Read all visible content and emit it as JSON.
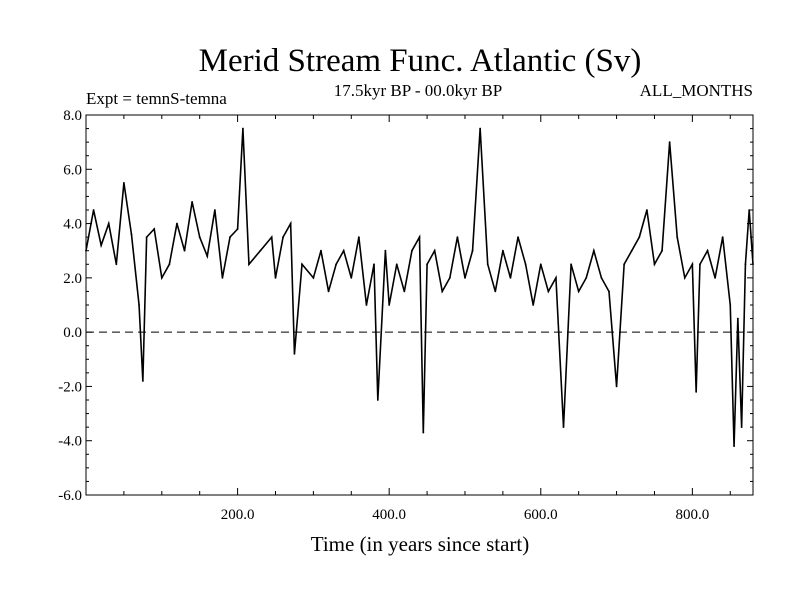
{
  "chart_data": {
    "type": "line",
    "title": "Merid Stream Func. Atlantic (Sv)",
    "subtitle_left": "Expt = temnS-temna",
    "subtitle_center": "17.5kyr BP - 00.0kyr BP",
    "subtitle_right": "ALL_MONTHS",
    "xlabel": "Time (in years since start)",
    "ylabel": "",
    "xlim": [
      0,
      880
    ],
    "ylim": [
      -6.0,
      8.0
    ],
    "x_ticks": [
      200,
      400,
      600,
      800
    ],
    "x_tick_labels": [
      "200.0",
      "400.0",
      "600.0",
      "800.0"
    ],
    "y_ticks": [
      -6,
      -4,
      -2,
      0,
      2,
      4,
      6,
      8
    ],
    "y_tick_labels": [
      "-6.0",
      "-4.0",
      "-2.0",
      "0.0",
      "2.0",
      "4.0",
      "6.0",
      "8.0"
    ],
    "reference_line": {
      "y": 0.0,
      "style": "dashed"
    },
    "series": [
      {
        "name": "Merid Stream Func. Atlantic",
        "x": [
          0,
          10,
          20,
          30,
          40,
          50,
          60,
          70,
          75,
          80,
          90,
          100,
          110,
          120,
          130,
          140,
          150,
          160,
          170,
          180,
          190,
          200,
          207,
          215,
          230,
          245,
          250,
          260,
          270,
          275,
          285,
          300,
          310,
          320,
          330,
          340,
          350,
          360,
          370,
          380,
          385,
          395,
          400,
          410,
          420,
          430,
          440,
          445,
          450,
          460,
          470,
          480,
          490,
          500,
          510,
          520,
          530,
          540,
          550,
          560,
          570,
          580,
          590,
          600,
          610,
          620,
          630,
          640,
          650,
          660,
          670,
          680,
          690,
          700,
          710,
          720,
          730,
          740,
          750,
          760,
          770,
          780,
          790,
          800,
          805,
          810,
          820,
          830,
          840,
          850,
          855,
          860,
          865,
          870,
          875,
          880
        ],
        "values": [
          3.0,
          4.5,
          3.2,
          4.0,
          2.5,
          5.5,
          3.6,
          1.0,
          -1.8,
          3.5,
          3.8,
          2.0,
          2.5,
          4.0,
          3.0,
          4.8,
          3.5,
          2.8,
          4.5,
          2.0,
          3.5,
          3.8,
          7.5,
          2.5,
          3.0,
          3.5,
          2.0,
          3.5,
          4.0,
          -0.8,
          2.5,
          2.0,
          3.0,
          1.5,
          2.5,
          3.0,
          2.0,
          3.5,
          1.0,
          2.5,
          -2.5,
          3.0,
          1.0,
          2.5,
          1.5,
          3.0,
          3.5,
          -3.7,
          2.5,
          3.0,
          1.5,
          2.0,
          3.5,
          2.0,
          3.0,
          7.5,
          2.5,
          1.5,
          3.0,
          2.0,
          3.5,
          2.5,
          1.0,
          2.5,
          1.5,
          2.0,
          -3.5,
          2.5,
          1.5,
          2.0,
          3.0,
          2.0,
          1.5,
          -2.0,
          2.5,
          3.0,
          3.5,
          4.5,
          2.5,
          3.0,
          7.0,
          3.5,
          2.0,
          2.5,
          -2.2,
          2.5,
          3.0,
          2.0,
          3.5,
          1.0,
          -4.2,
          0.5,
          -3.5,
          2.5,
          4.5,
          2.5
        ]
      }
    ]
  }
}
